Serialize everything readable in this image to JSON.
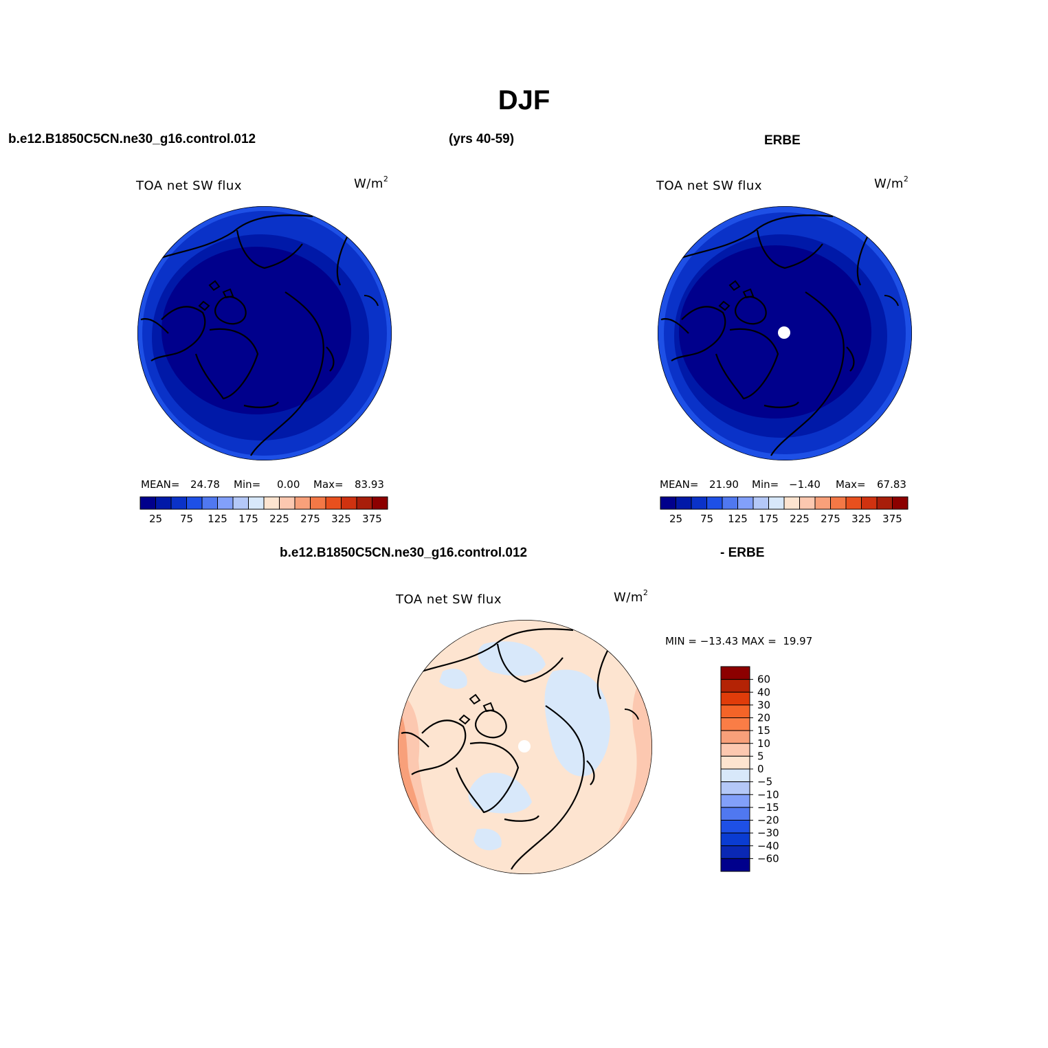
{
  "title": "DJF",
  "top_left_header": "b.e12.B1850C5CN.ne30_g16.control.012",
  "top_mid_header": "(yrs 40-59)",
  "top_right_header": "ERBE",
  "bottom_header_left": "b.e12.B1850C5CN.ne30_g16.control.012",
  "bottom_header_right": "- ERBE",
  "panels": [
    {
      "variable": "TOA net SW flux",
      "units": "W/m",
      "units_sup": "2",
      "mean_label": "MEAN=",
      "mean": "24.78",
      "min_label": "Min=",
      "min": "0.00",
      "max_label": "Max=",
      "max": "83.93"
    },
    {
      "variable": "TOA net SW flux",
      "units": "W/m",
      "units_sup": "2",
      "mean_label": "MEAN=",
      "mean": "21.90",
      "min_label": "Min=",
      "min": "−1.40",
      "max_label": "Max=",
      "max": "67.83"
    },
    {
      "variable": "TOA net SW flux",
      "units": "W/m",
      "units_sup": "2",
      "minmax_text": "MIN = −13.43 MAX =  19.97"
    }
  ],
  "abs_colorbar": {
    "colors": [
      "#00008c",
      "#0019a8",
      "#0a32c8",
      "#1e50e6",
      "#5078f0",
      "#82a0fa",
      "#b4c8f8",
      "#d8e8fa",
      "#fde4d0",
      "#fcc8b0",
      "#f8a07a",
      "#f47846",
      "#e8501e",
      "#d03210",
      "#a81e0a",
      "#8c0000"
    ],
    "tick_labels": [
      "25",
      "75",
      "125",
      "175",
      "225",
      "275",
      "325",
      "375"
    ]
  },
  "diff_colorbar": {
    "colors": [
      "#00008c",
      "#0a28b4",
      "#0a3cd2",
      "#1e50e6",
      "#5078f0",
      "#82a0fa",
      "#b4c8f8",
      "#d8e8fa",
      "#fde4d0",
      "#fcc8b0",
      "#f8a07a",
      "#fa7d46",
      "#f46428",
      "#e03c0a",
      "#b42305",
      "#8c0000"
    ],
    "tick_labels": [
      "60",
      "40",
      "30",
      "20",
      "15",
      "10",
      "5",
      "0",
      "−5",
      "−10",
      "−15",
      "−20",
      "−30",
      "−40",
      "−60"
    ]
  },
  "map_colors": {
    "abs_center": "#00008c",
    "abs_mid": "#0019a8",
    "abs_outer": "#0a32c8",
    "abs_edge": "#1e50e6",
    "diff_base": "#fde4d0",
    "diff_light_blue": "#d8e8fa",
    "diff_warm": "#fcc8b0",
    "diff_warmer": "#f8a07a",
    "coast": "#000000",
    "missing": "#ffffff"
  }
}
